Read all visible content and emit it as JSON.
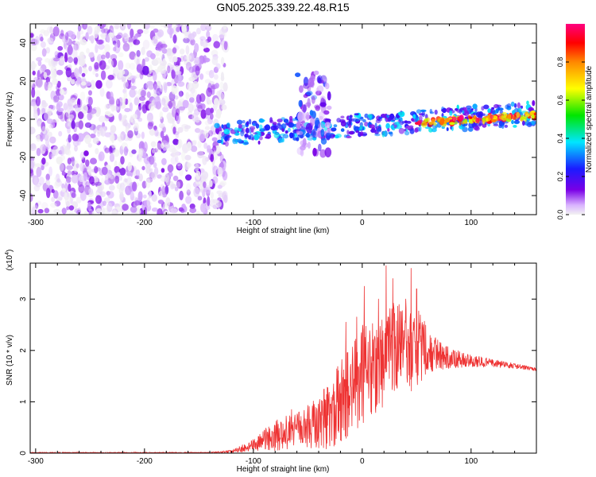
{
  "title": "GN05.2025.339.22.48.R15",
  "colors": {
    "snr_line": "#ee3333",
    "axis": "#000000",
    "background": "#ffffff",
    "colormap": [
      "#f2f2f2",
      "#7a00e6",
      "#1b1bff",
      "#00e6ff",
      "#00e600",
      "#ffff00",
      "#ff8800",
      "#ff0000",
      "#ff0080"
    ]
  },
  "chart_data": [
    {
      "type": "heatmap",
      "name": "spectrogram",
      "xlabel": "Height of straight line (km)",
      "ylabel": "Frequency (Hz)",
      "xlim": [
        -305,
        160
      ],
      "ylim": [
        -50,
        50
      ],
      "xticks": [
        -300,
        -200,
        -100,
        0,
        100
      ],
      "yticks": [
        -40,
        -20,
        0,
        20,
        40
      ],
      "colorbar": {
        "label": "Normalized spectral amplitude",
        "range": [
          0,
          1
        ],
        "ticks": [
          "0.0",
          "0.2",
          "0.4",
          "0.6",
          "0.8"
        ],
        "tick_values": [
          0.0,
          0.2,
          0.4,
          0.6,
          0.8
        ],
        "colormap": "rainbow (purple to red/magenta)"
      },
      "regions": [
        {
          "description": "diffuse low-amplitude noise",
          "x_range": [
            -305,
            -125
          ],
          "freq_range": [
            -50,
            50
          ],
          "amplitude_range": [
            0.0,
            0.15
          ]
        },
        {
          "description": "frequency-drifting band",
          "x_range": [
            -135,
            160
          ],
          "center_freq_start": -8,
          "center_freq_end": 3,
          "amplitude_range": [
            0.1,
            0.4
          ]
        },
        {
          "description": "transient burst",
          "x_range": [
            -60,
            -30
          ],
          "freq_range": [
            -20,
            25
          ],
          "amplitude_range": [
            0.05,
            0.3
          ]
        },
        {
          "description": "high-amplitude tone",
          "x_range": [
            50,
            160
          ],
          "center_freq_start": -2,
          "center_freq_end": 2,
          "amplitude_range": [
            0.6,
            1.0
          ]
        }
      ]
    },
    {
      "type": "line",
      "name": "snr",
      "xlabel": "Height of straight line (km)",
      "ylabel": "SNR (10 * v/v)",
      "scale_label": "(x10",
      "scale_exponent": "4",
      "xlim": [
        -305,
        160
      ],
      "ylim": [
        0,
        3.7
      ],
      "xticks": [
        -300,
        -200,
        -100,
        0,
        100
      ],
      "yticks": [
        0,
        1,
        2,
        3
      ],
      "series": [
        {
          "name": "SNR",
          "envelope": {
            "x": [
              -305,
              -200,
              -140,
              -120,
              -100,
              -80,
              -60,
              -40,
              -25,
              -15,
              0,
              15,
              25,
              35,
              50,
              65,
              80,
              100,
              120,
              140,
              160
            ],
            "mean": [
              0.01,
              0.01,
              0.01,
              0.03,
              0.15,
              0.35,
              0.45,
              0.6,
              0.85,
              1.1,
              1.5,
              1.75,
              1.95,
              2.0,
              2.05,
              1.95,
              1.85,
              1.8,
              1.75,
              1.7,
              1.63
            ],
            "amp": [
              0.01,
              0.01,
              0.01,
              0.03,
              0.12,
              0.3,
              0.35,
              0.5,
              0.8,
              0.9,
              1.0,
              0.95,
              1.0,
              0.9,
              0.8,
              0.35,
              0.2,
              0.12,
              0.08,
              0.05,
              0.03
            ]
          },
          "peaks": [
            {
              "x": -65,
              "y": 0.85
            },
            {
              "x": -35,
              "y": 1.25
            },
            {
              "x": -15,
              "y": 2.55
            },
            {
              "x": -5,
              "y": 2.65
            },
            {
              "x": 2,
              "y": 3.25
            },
            {
              "x": 15,
              "y": 3.0
            },
            {
              "x": 22,
              "y": 3.65
            },
            {
              "x": 28,
              "y": 3.4
            },
            {
              "x": 40,
              "y": 3.0
            },
            {
              "x": 45,
              "y": 3.6
            },
            {
              "x": 50,
              "y": 3.2
            }
          ]
        }
      ]
    }
  ]
}
